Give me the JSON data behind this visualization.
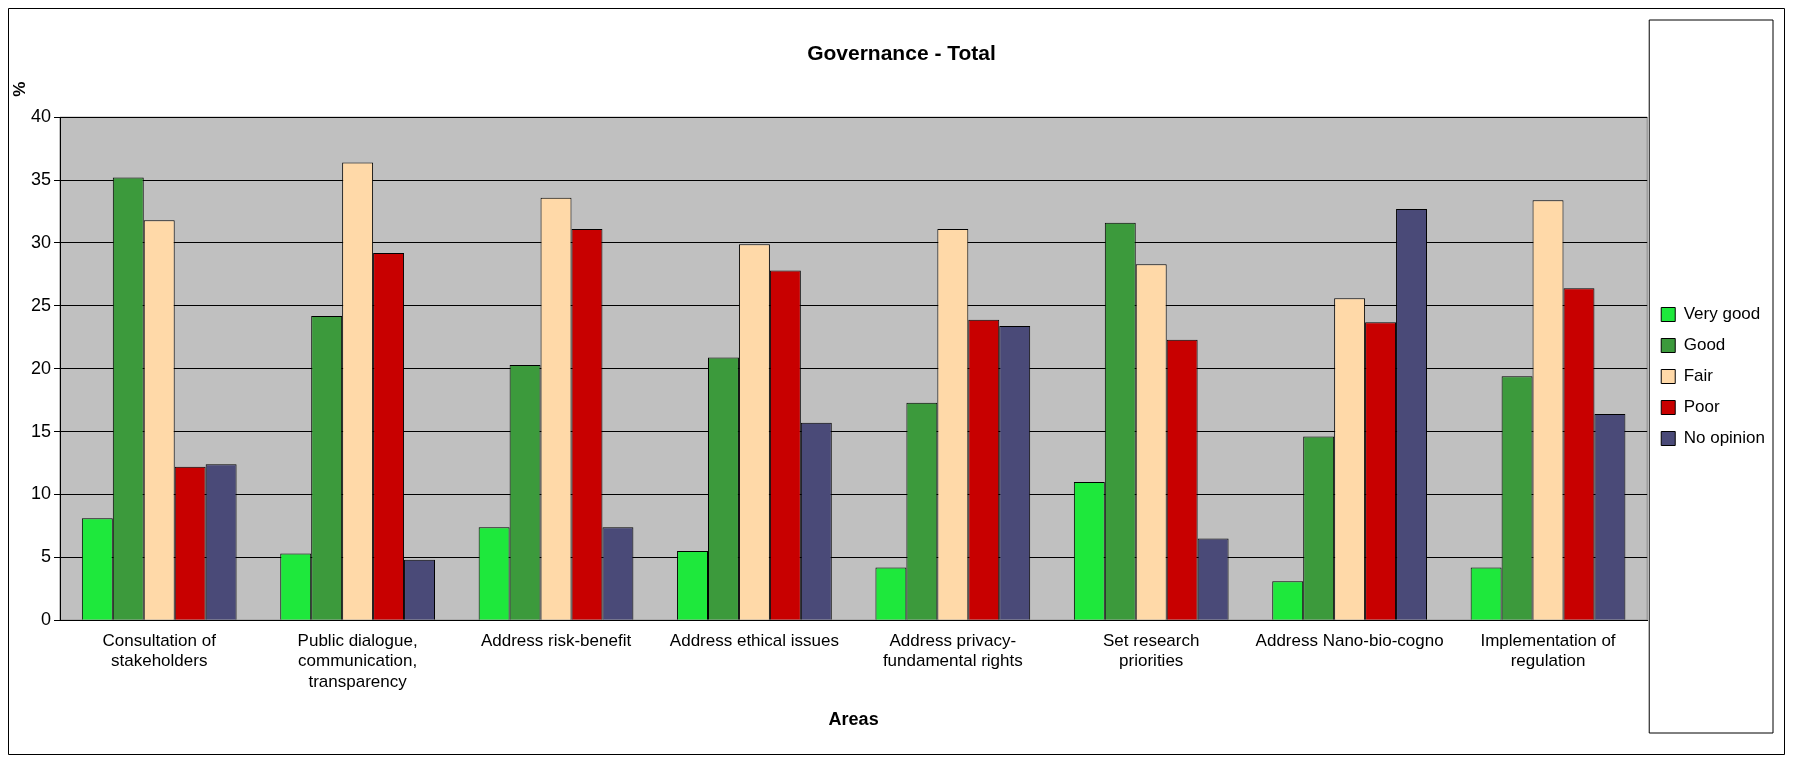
{
  "chart_data": {
    "type": "bar",
    "title": "Governance - Total",
    "xlabel": "Areas",
    "ylabel": "%",
    "categories": [
      "Consultation of stakeholders",
      "Public dialogue, communication, transparency",
      "Address risk-benefit",
      "Address ethical issues",
      "Address privacy-fundamental rights",
      "Set research priorities",
      "Address Nano-bio-cogno",
      "Implementation of regulation"
    ],
    "series": [
      {
        "name": "Very good",
        "color": "#1ee83c",
        "values": [
          8.1,
          5.3,
          7.4,
          5.5,
          4.2,
          11.0,
          3.1,
          4.2
        ]
      },
      {
        "name": "Good",
        "color": "#3c9a3c",
        "values": [
          35.2,
          24.2,
          20.3,
          20.9,
          17.3,
          31.6,
          14.6,
          19.4
        ]
      },
      {
        "name": "Fair",
        "color": "#ffd9a8",
        "values": [
          31.8,
          36.4,
          33.6,
          29.9,
          31.1,
          28.3,
          25.6,
          33.4
        ]
      },
      {
        "name": "Poor",
        "color": "#c80000",
        "values": [
          12.2,
          29.2,
          31.1,
          27.8,
          23.9,
          22.3,
          23.7,
          26.4
        ]
      },
      {
        "name": "No opinion",
        "color": "#4a4a78",
        "values": [
          12.4,
          4.8,
          7.4,
          15.7,
          23.4,
          6.5,
          32.7,
          16.4
        ]
      }
    ],
    "ylim": [
      0,
      40
    ],
    "yticks": [
      0,
      5,
      10,
      15,
      20,
      25,
      30,
      35,
      40
    ],
    "grid": "y",
    "legend": "right"
  }
}
